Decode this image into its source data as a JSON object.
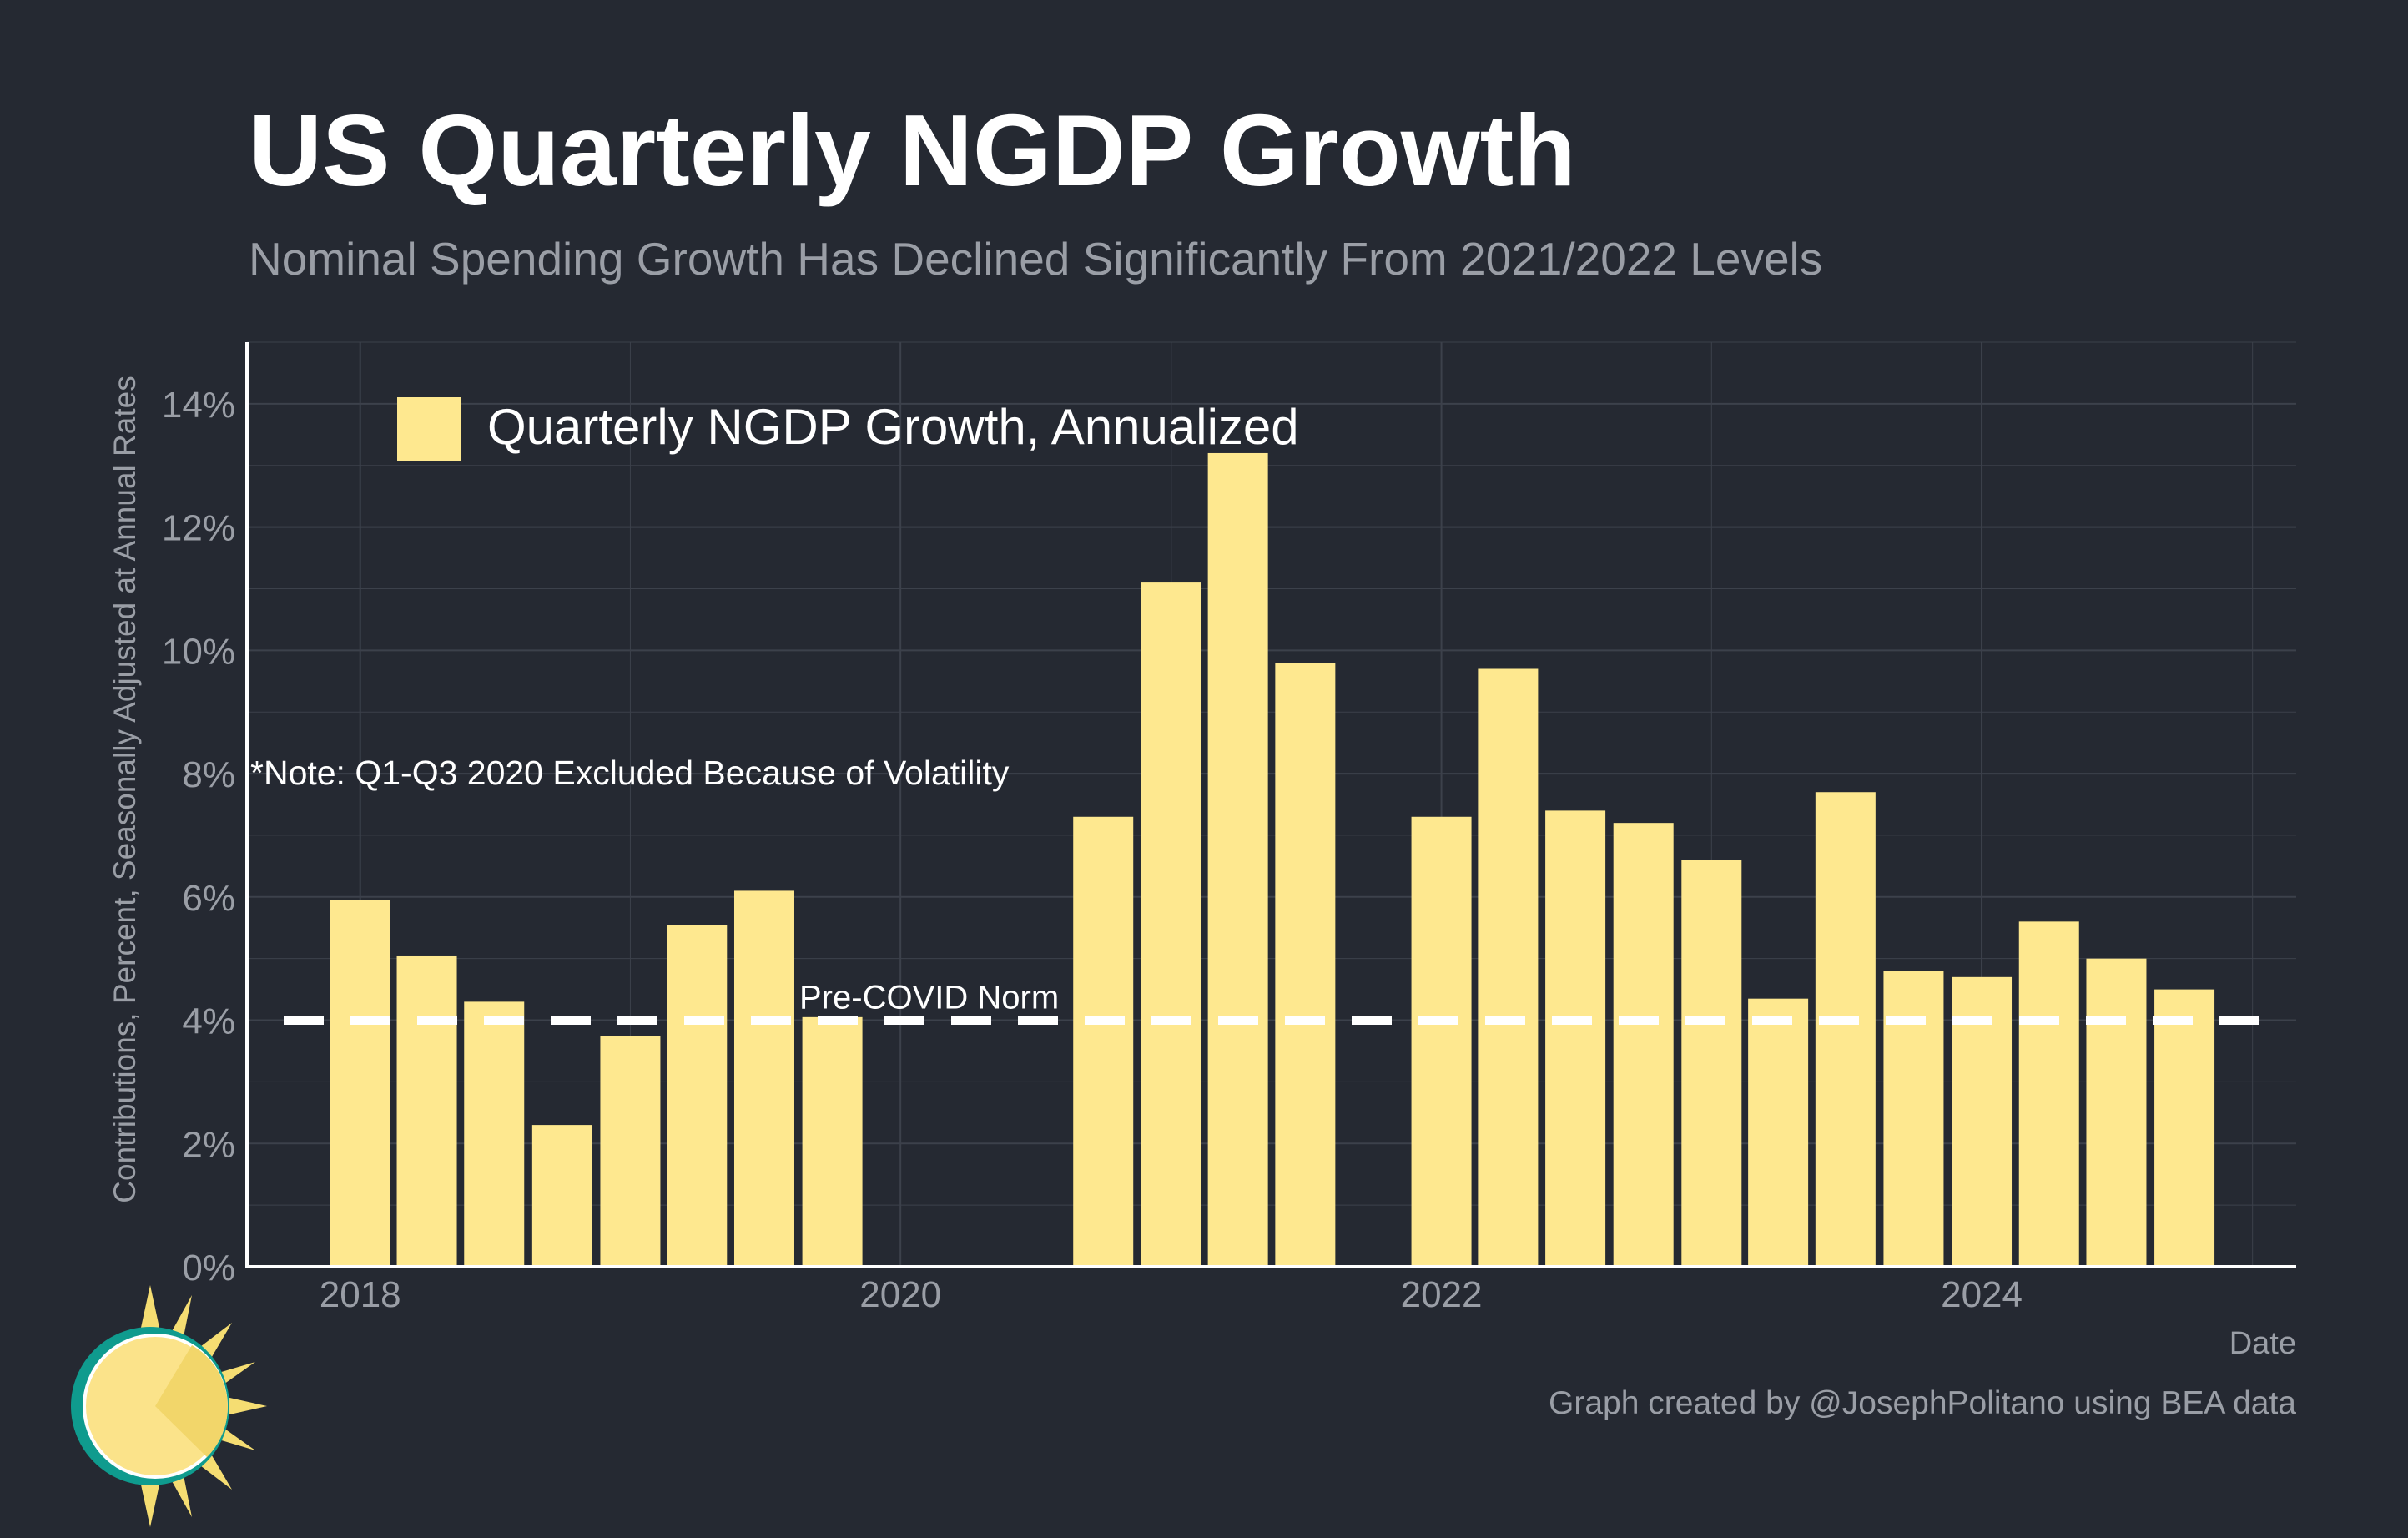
{
  "title": "US Quarterly NGDP Growth",
  "subtitle": "Nominal Spending Growth Has Declined Significantly From 2021/2022 Levels",
  "caption": "Graph created by @JosephPolitano using BEA data",
  "colors": {
    "background": "#252932",
    "bar": "#fee88f",
    "grid": "#3c414b",
    "axis": "#ffffff",
    "muted_text": "#9a9ea6",
    "reference_line": "#ffffff"
  },
  "chart_data": {
    "type": "bar",
    "xlabel": "Date",
    "ylabel": "Contributions, Percent, Seasonally Adjusted at Annual Rates",
    "ylim": [
      0,
      15
    ],
    "xlim": [
      "2017-08",
      "2025-03"
    ],
    "y_ticks": [
      "0%",
      "2%",
      "4%",
      "6%",
      "8%",
      "10%",
      "12%",
      "14%"
    ],
    "x_ticks": [
      "2018",
      "2020",
      "2022",
      "2024"
    ],
    "grid": true,
    "legend": {
      "position": "top-left",
      "entries": [
        "Quarterly NGDP Growth, Annualized"
      ]
    },
    "series": [
      {
        "name": "Quarterly NGDP Growth, Annualized",
        "x": [
          "2018-01-01",
          "2018-04-01",
          "2018-07-01",
          "2018-10-01",
          "2019-01-01",
          "2019-04-01",
          "2019-07-01",
          "2019-10-01",
          "2020-10-01",
          "2021-01-01",
          "2021-04-01",
          "2021-07-01",
          "2022-01-01",
          "2022-04-01",
          "2022-07-01",
          "2022-10-01",
          "2023-01-01",
          "2023-04-01",
          "2023-07-01",
          "2023-10-01",
          "2024-01-01",
          "2024-04-01",
          "2024-07-01",
          "2024-10-01"
        ],
        "values": [
          5.95,
          5.05,
          4.3,
          2.3,
          3.75,
          5.55,
          6.1,
          4.05,
          7.3,
          11.1,
          13.2,
          9.8,
          7.3,
          9.7,
          7.4,
          7.2,
          6.6,
          4.35,
          7.7,
          4.8,
          4.7,
          5.6,
          5.0,
          4.5
        ]
      }
    ],
    "reference_line": {
      "value": 4,
      "label": "Pre-COVID Norm",
      "style": "dashed"
    },
    "annotations": [
      "*Note: Q1-Q3 2020 Excluded Because of Volatility"
    ]
  }
}
